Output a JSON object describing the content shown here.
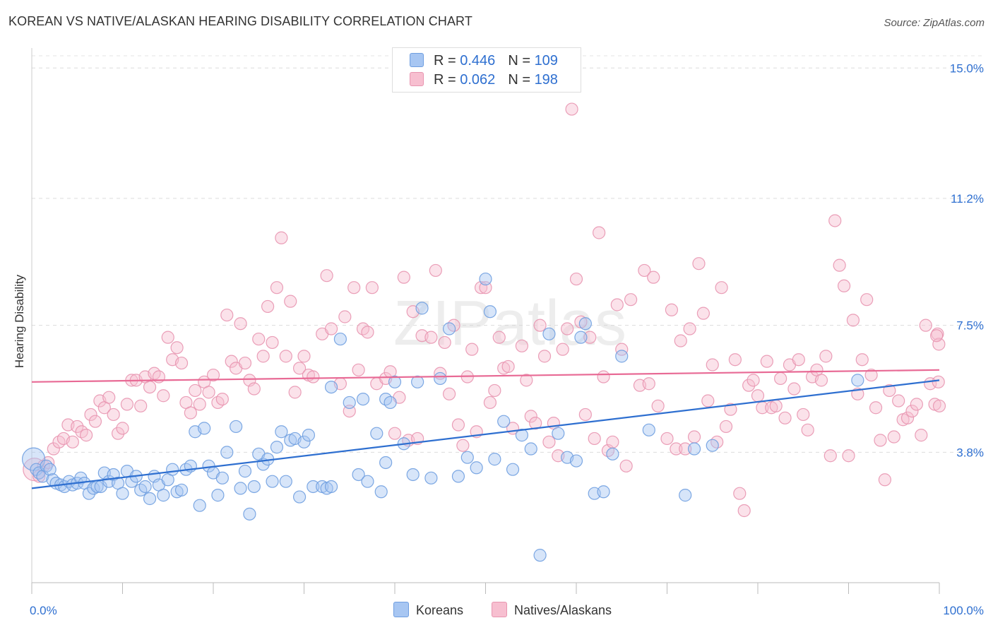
{
  "title": "KOREAN VS NATIVE/ALASKAN HEARING DISABILITY CORRELATION CHART",
  "source": "Source: ZipAtlas.com",
  "watermark": "ZIPatlas",
  "legend": {
    "rows": [
      {
        "r_label": "R =",
        "r_value": "0.446",
        "n_label": "N =",
        "n_value": "109",
        "color": "#a7c6f2",
        "border": "#6f9ee0"
      },
      {
        "r_label": "R =",
        "r_value": "0.062",
        "n_label": "N =",
        "n_value": "198",
        "color": "#f7bfd0",
        "border": "#e895b0"
      }
    ]
  },
  "bottom_legend": {
    "koreans": "Koreans",
    "natives": "Natives/Alaskans"
  },
  "chart_data": {
    "type": "scatter",
    "ylabel": "Hearing Disability",
    "xlim": [
      0,
      100
    ],
    "ylim": [
      0,
      15.5
    ],
    "x_tick_labels": [
      "0.0%",
      "100.0%"
    ],
    "y_ticks": [
      3.8,
      7.5,
      11.2,
      15.0
    ],
    "y_tick_labels": [
      "3.8%",
      "7.5%",
      "11.2%",
      "15.0%"
    ],
    "grid": true,
    "colors": {
      "koreans": "#6f9ee0",
      "natives": "#e895b0",
      "korean_line": "#2e6fd0",
      "native_line": "#e86a95",
      "tick_label": "#2e6fd0"
    },
    "series": [
      {
        "name": "Koreans",
        "trend": [
          [
            0,
            2.75
          ],
          [
            100,
            5.9
          ]
        ],
        "points": [
          [
            0.2,
            3.6
          ],
          [
            0.5,
            3.3
          ],
          [
            0.8,
            3.2
          ],
          [
            1.2,
            3.1
          ],
          [
            1.6,
            3.4
          ],
          [
            2,
            3.3
          ],
          [
            2.3,
            3.0
          ],
          [
            2.7,
            2.9
          ],
          [
            3.2,
            2.85
          ],
          [
            3.6,
            2.8
          ],
          [
            4.1,
            2.95
          ],
          [
            4.5,
            2.85
          ],
          [
            5,
            2.9
          ],
          [
            5.4,
            3.05
          ],
          [
            5.8,
            2.9
          ],
          [
            6.3,
            2.6
          ],
          [
            6.8,
            2.75
          ],
          [
            7.2,
            2.8
          ],
          [
            7.6,
            2.8
          ],
          [
            8,
            3.2
          ],
          [
            8.5,
            2.95
          ],
          [
            9,
            3.15
          ],
          [
            9.5,
            2.9
          ],
          [
            10,
            2.6
          ],
          [
            10.5,
            3.25
          ],
          [
            11,
            2.95
          ],
          [
            11.5,
            3.1
          ],
          [
            12,
            2.7
          ],
          [
            12.5,
            2.8
          ],
          [
            13,
            2.45
          ],
          [
            13.5,
            3.1
          ],
          [
            14,
            2.85
          ],
          [
            14.5,
            2.55
          ],
          [
            15,
            3.0
          ],
          [
            15.5,
            3.3
          ],
          [
            16,
            2.65
          ],
          [
            16.5,
            2.7
          ],
          [
            17,
            3.3
          ],
          [
            17.5,
            3.4
          ],
          [
            18,
            4.4
          ],
          [
            18.5,
            2.25
          ],
          [
            19,
            4.5
          ],
          [
            19.5,
            3.4
          ],
          [
            20,
            3.2
          ],
          [
            20.5,
            2.55
          ],
          [
            21,
            3.05
          ],
          [
            21.5,
            3.8
          ],
          [
            22.5,
            4.55
          ],
          [
            23,
            2.75
          ],
          [
            23.5,
            3.25
          ],
          [
            24,
            2.0
          ],
          [
            24.5,
            2.8
          ],
          [
            25,
            3.75
          ],
          [
            25.5,
            3.45
          ],
          [
            26,
            3.6
          ],
          [
            26.5,
            2.95
          ],
          [
            27,
            3.95
          ],
          [
            27.5,
            4.4
          ],
          [
            28,
            2.95
          ],
          [
            28.5,
            4.15
          ],
          [
            29,
            4.2
          ],
          [
            29.5,
            2.5
          ],
          [
            30,
            4.1
          ],
          [
            30.5,
            4.3
          ],
          [
            31,
            2.8
          ],
          [
            32,
            2.8
          ],
          [
            32.5,
            2.75
          ],
          [
            33,
            2.8
          ],
          [
            33,
            5.7
          ],
          [
            34,
            7.1
          ],
          [
            35,
            5.25
          ],
          [
            36,
            3.15
          ],
          [
            36.5,
            5.35
          ],
          [
            37,
            2.95
          ],
          [
            38,
            4.35
          ],
          [
            38.5,
            2.65
          ],
          [
            39,
            5.35
          ],
          [
            39,
            3.5
          ],
          [
            39.5,
            5.25
          ],
          [
            40,
            5.85
          ],
          [
            41,
            4.05
          ],
          [
            42,
            3.15
          ],
          [
            42.5,
            5.85
          ],
          [
            43,
            8.0
          ],
          [
            44,
            3.05
          ],
          [
            45,
            5.95
          ],
          [
            46,
            7.4
          ],
          [
            47,
            3.1
          ],
          [
            48,
            3.65
          ],
          [
            49,
            3.35
          ],
          [
            50,
            8.85
          ],
          [
            50.5,
            7.9
          ],
          [
            51,
            3.6
          ],
          [
            52,
            4.7
          ],
          [
            53,
            3.3
          ],
          [
            54,
            4.3
          ],
          [
            55,
            3.9
          ],
          [
            56,
            0.8
          ],
          [
            57,
            7.25
          ],
          [
            58,
            4.35
          ],
          [
            59,
            3.65
          ],
          [
            60,
            3.55
          ],
          [
            60.5,
            7.15
          ],
          [
            61,
            7.55
          ],
          [
            62,
            2.6
          ],
          [
            63,
            2.65
          ],
          [
            64,
            3.75
          ],
          [
            65,
            6.6
          ],
          [
            68,
            4.45
          ],
          [
            72,
            2.55
          ],
          [
            73,
            3.9
          ],
          [
            75,
            4.0
          ],
          [
            91,
            5.9
          ]
        ]
      },
      {
        "name": "Natives/Alaskans",
        "trend": [
          [
            0,
            5.85
          ],
          [
            100,
            6.2
          ]
        ],
        "points": [
          [
            0.3,
            3.3
          ],
          [
            0.8,
            3.1
          ],
          [
            1.3,
            3.4
          ],
          [
            1.8,
            3.5
          ],
          [
            2.4,
            3.9
          ],
          [
            3,
            4.1
          ],
          [
            3.5,
            4.2
          ],
          [
            4,
            4.6
          ],
          [
            4.5,
            4.1
          ],
          [
            5,
            4.55
          ],
          [
            5.5,
            4.4
          ],
          [
            6,
            4.3
          ],
          [
            6.5,
            4.9
          ],
          [
            7,
            4.7
          ],
          [
            7.5,
            5.3
          ],
          [
            8,
            5.1
          ],
          [
            8.5,
            5.4
          ],
          [
            9,
            4.9
          ],
          [
            9.5,
            4.35
          ],
          [
            10,
            4.5
          ],
          [
            10.5,
            5.2
          ],
          [
            11,
            5.9
          ],
          [
            11.5,
            5.9
          ],
          [
            12,
            5.15
          ],
          [
            12.5,
            6.0
          ],
          [
            13,
            5.7
          ],
          [
            13.5,
            6.1
          ],
          [
            14,
            6.0
          ],
          [
            14.5,
            5.45
          ],
          [
            15,
            7.15
          ],
          [
            15.5,
            6.5
          ],
          [
            16,
            6.85
          ],
          [
            16.5,
            6.4
          ],
          [
            17,
            5.25
          ],
          [
            17.5,
            4.95
          ],
          [
            18,
            5.6
          ],
          [
            18.5,
            5.2
          ],
          [
            19,
            5.85
          ],
          [
            19.5,
            5.55
          ],
          [
            20,
            6.05
          ],
          [
            20.5,
            5.25
          ],
          [
            21,
            5.35
          ],
          [
            21.5,
            7.8
          ],
          [
            22,
            6.45
          ],
          [
            22.5,
            6.25
          ],
          [
            23,
            7.55
          ],
          [
            23.5,
            6.4
          ],
          [
            24,
            5.9
          ],
          [
            24.5,
            5.65
          ],
          [
            25,
            7.1
          ],
          [
            25.5,
            6.6
          ],
          [
            26,
            8.05
          ],
          [
            26.5,
            7.0
          ],
          [
            27,
            8.6
          ],
          [
            27.5,
            10.05
          ],
          [
            28,
            6.6
          ],
          [
            28.5,
            8.2
          ],
          [
            29,
            5.55
          ],
          [
            29.5,
            6.25
          ],
          [
            30,
            6.6
          ],
          [
            30.5,
            6.05
          ],
          [
            31,
            6.0
          ],
          [
            32,
            7.25
          ],
          [
            32.5,
            8.95
          ],
          [
            33,
            7.4
          ],
          [
            34,
            5.8
          ],
          [
            34.5,
            7.75
          ],
          [
            35,
            5.0
          ],
          [
            35.5,
            8.6
          ],
          [
            36,
            6.2
          ],
          [
            36.5,
            7.4
          ],
          [
            37,
            7.3
          ],
          [
            37.5,
            8.6
          ],
          [
            38,
            5.8
          ],
          [
            39,
            5.95
          ],
          [
            39.5,
            6.15
          ],
          [
            40,
            4.35
          ],
          [
            40.5,
            5.4
          ],
          [
            41,
            8.9
          ],
          [
            41.5,
            4.15
          ],
          [
            42,
            7.9
          ],
          [
            42.5,
            4.2
          ],
          [
            43,
            7.2
          ],
          [
            44,
            7.15
          ],
          [
            44.5,
            9.1
          ],
          [
            45,
            6.1
          ],
          [
            45.5,
            7.0
          ],
          [
            46,
            5.5
          ],
          [
            46.5,
            7.5
          ],
          [
            47,
            4.6
          ],
          [
            47.5,
            4.0
          ],
          [
            48,
            6.0
          ],
          [
            48.5,
            6.8
          ],
          [
            49,
            4.4
          ],
          [
            49.5,
            8.6
          ],
          [
            50,
            8.6
          ],
          [
            50.5,
            5.25
          ],
          [
            51,
            5.6
          ],
          [
            51.5,
            7.15
          ],
          [
            52,
            6.25
          ],
          [
            52.5,
            6.3
          ],
          [
            53,
            4.5
          ],
          [
            54,
            6.9
          ],
          [
            54.5,
            5.9
          ],
          [
            55,
            4.85
          ],
          [
            55.5,
            4.65
          ],
          [
            56,
            7.5
          ],
          [
            56.5,
            6.6
          ],
          [
            57,
            4.1
          ],
          [
            57.5,
            4.65
          ],
          [
            58,
            3.7
          ],
          [
            58.5,
            6.8
          ],
          [
            59,
            7.4
          ],
          [
            59.5,
            13.8
          ],
          [
            60,
            8.85
          ],
          [
            60.5,
            7.6
          ],
          [
            61,
            4.9
          ],
          [
            61.5,
            7.15
          ],
          [
            62,
            4.2
          ],
          [
            62.5,
            10.2
          ],
          [
            63,
            6.0
          ],
          [
            63.5,
            3.85
          ],
          [
            64,
            4.1
          ],
          [
            64.5,
            8.1
          ],
          [
            65,
            6.8
          ],
          [
            65.5,
            3.4
          ],
          [
            66,
            8.25
          ],
          [
            67,
            5.75
          ],
          [
            67.5,
            9.1
          ],
          [
            68,
            5.8
          ],
          [
            68.5,
            8.9
          ],
          [
            69,
            5.15
          ],
          [
            70,
            4.2
          ],
          [
            70.5,
            7.95
          ],
          [
            71,
            3.9
          ],
          [
            71.5,
            7.05
          ],
          [
            72,
            3.9
          ],
          [
            72.5,
            7.4
          ],
          [
            73,
            4.25
          ],
          [
            73.5,
            9.3
          ],
          [
            74,
            7.85
          ],
          [
            74.5,
            5.3
          ],
          [
            75,
            6.35
          ],
          [
            75.5,
            4.1
          ],
          [
            76,
            8.6
          ],
          [
            76.5,
            4.55
          ],
          [
            77,
            5.05
          ],
          [
            77.5,
            6.5
          ],
          [
            78,
            2.6
          ],
          [
            78.5,
            2.1
          ],
          [
            79,
            5.75
          ],
          [
            79.5,
            5.9
          ],
          [
            80,
            5.45
          ],
          [
            80.5,
            5.1
          ],
          [
            81,
            6.45
          ],
          [
            81.5,
            5.1
          ],
          [
            82,
            5.15
          ],
          [
            82.5,
            5.95
          ],
          [
            83,
            4.8
          ],
          [
            83.5,
            6.35
          ],
          [
            84,
            5.65
          ],
          [
            84.5,
            6.5
          ],
          [
            85,
            4.9
          ],
          [
            85.5,
            4.45
          ],
          [
            86,
            6.0
          ],
          [
            86.5,
            6.2
          ],
          [
            87,
            5.9
          ],
          [
            87.5,
            6.6
          ],
          [
            88,
            3.7
          ],
          [
            88.5,
            10.55
          ],
          [
            89,
            9.25
          ],
          [
            89.5,
            8.65
          ],
          [
            90,
            3.7
          ],
          [
            90.5,
            7.65
          ],
          [
            91,
            5.5
          ],
          [
            91.5,
            6.5
          ],
          [
            92,
            8.25
          ],
          [
            92.5,
            6.05
          ],
          [
            93,
            5.1
          ],
          [
            93.5,
            4.15
          ],
          [
            94,
            3.0
          ],
          [
            94.5,
            5.6
          ],
          [
            95,
            4.25
          ],
          [
            95.5,
            5.3
          ],
          [
            96,
            4.75
          ],
          [
            96.5,
            4.8
          ],
          [
            97,
            5.0
          ],
          [
            97.5,
            5.2
          ],
          [
            98,
            4.3
          ],
          [
            98.5,
            7.5
          ],
          [
            99,
            5.8
          ],
          [
            99.5,
            5.2
          ],
          [
            99.8,
            7.25
          ],
          [
            100,
            5.15
          ],
          [
            99.9,
            5.85
          ],
          [
            99.95,
            6.95
          ],
          [
            99.7,
            7.2
          ]
        ]
      }
    ]
  }
}
